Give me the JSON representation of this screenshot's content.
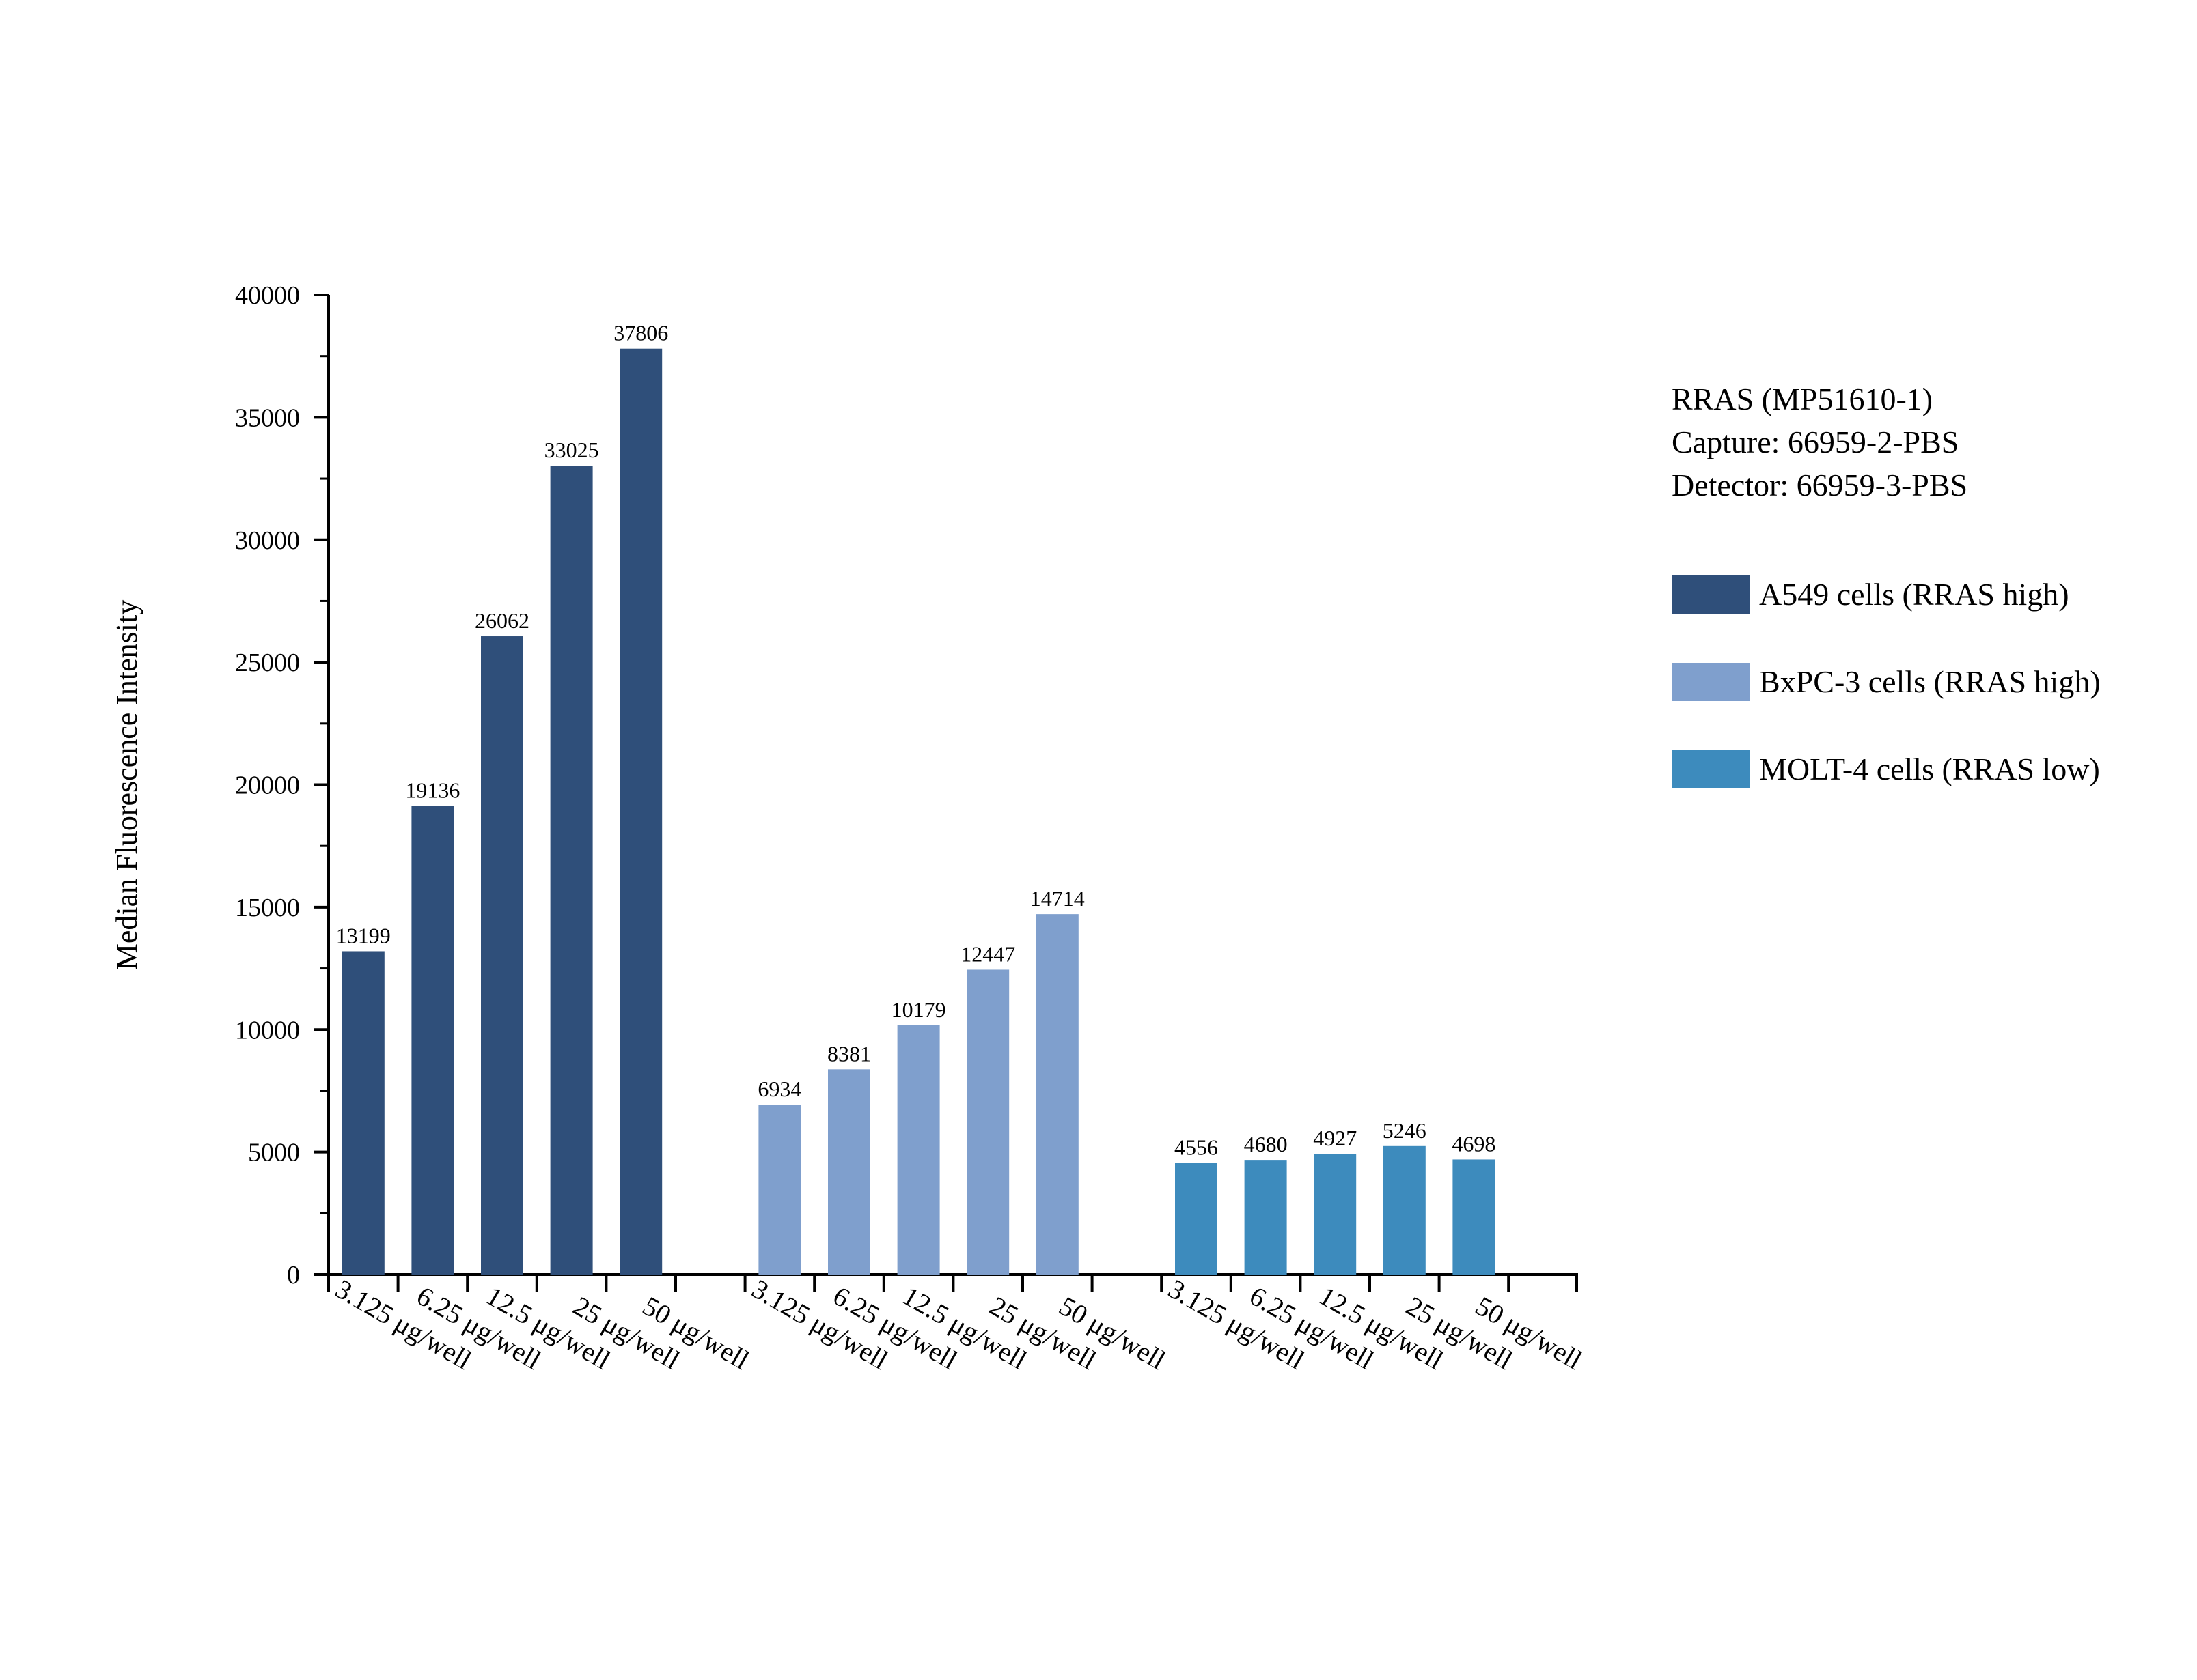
{
  "chart_data": {
    "type": "bar",
    "title": "",
    "xlabel": "",
    "ylabel": "Median Fluorescence Intensity",
    "ylim": [
      0,
      40000
    ],
    "yticks": [
      0,
      5000,
      10000,
      15000,
      20000,
      25000,
      30000,
      35000,
      40000
    ],
    "grid": false,
    "legend_position": "right",
    "legend_title": [
      "RRAS (MP51610-1)",
      "Capture: 66959-2-PBS",
      "Detector: 66959-3-PBS"
    ],
    "groups": [
      {
        "name": "A549 cells (RRAS high)",
        "color": "#2f4f7a",
        "categories": [
          "3.125 μg/well",
          "6.25 μg/well",
          "12.5 μg/well",
          "25 μg/well",
          "50 μg/well"
        ],
        "values": [
          13199,
          19136,
          26062,
          33025,
          37806
        ]
      },
      {
        "name": "BxPC-3 cells (RRAS high)",
        "color": "#7f9fcd",
        "categories": [
          "3.125 μg/well",
          "6.25 μg/well",
          "12.5 μg/well",
          "25 μg/well",
          "50 μg/well"
        ],
        "values": [
          6934,
          8381,
          10179,
          12447,
          14714
        ]
      },
      {
        "name": "MOLT-4 cells (RRAS low)",
        "color": "#3d8bbd",
        "categories": [
          "3.125 μg/well",
          "6.25 μg/well",
          "12.5 μg/well",
          "25 μg/well",
          "50 μg/well"
        ],
        "values": [
          4556,
          4680,
          4927,
          5246,
          4698
        ]
      }
    ]
  }
}
